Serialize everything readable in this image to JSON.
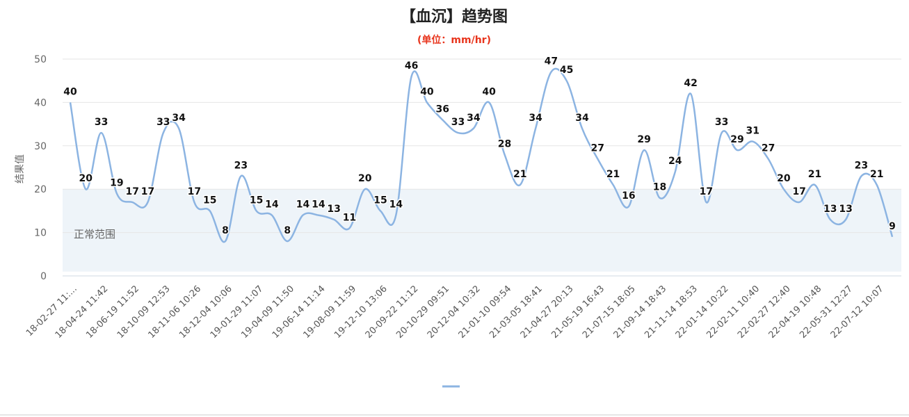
{
  "chart_data": {
    "type": "line",
    "title": "【血沉】趋势图",
    "subtitle": "(单位：mm/hr)",
    "ylabel": "结果值",
    "xlabel": "",
    "ylim": [
      0,
      50
    ],
    "yticks": [
      0,
      10,
      20,
      30,
      40,
      50
    ],
    "grid": true,
    "normal_range": {
      "label": "正常范围",
      "min": 1,
      "max": 20
    },
    "line_color": "#8cb4e2",
    "band_color": "#eef4f9",
    "subtitle_color": "#e8341c",
    "legend": {
      "placement": "bottom-center",
      "label": ""
    },
    "x_tick_labels": [
      "18-02-27 11:...",
      "18-04-24 11:42",
      "18-06-19 11:52",
      "18-10-09 12:53",
      "18-11-06 10:26",
      "18-12-04 10:06",
      "19-01-29 11:07",
      "19-04-09 11:50",
      "19-06-14 11:14",
      "19-08-09 11:59",
      "19-12-10 13:06",
      "20-09-22 11:12",
      "20-10-29 09:51",
      "20-12-04 10:32",
      "21-01-10 09:54",
      "21-03-05 18:41",
      "21-04-27 20:13",
      "21-05-19 16:43",
      "21-07-15 18:05",
      "21-09-14 18:43",
      "21-11-14 18:53",
      "22-01-14 10:22",
      "22-02-11 10:40",
      "22-02-27 12:40",
      "22-04-19 10:48",
      "22-05-31 12:27",
      "22-07-12 10:07"
    ],
    "series": [
      {
        "name": "",
        "values": [
          40,
          20,
          33,
          19,
          17,
          17,
          33,
          34,
          17,
          15,
          8,
          23,
          15,
          14,
          8,
          14,
          14,
          13,
          11,
          20,
          15,
          14,
          46,
          40,
          36,
          33,
          34,
          40,
          28,
          21,
          34,
          47,
          45,
          34,
          27,
          21,
          16,
          29,
          18,
          24,
          42,
          17,
          33,
          29,
          31,
          27,
          20,
          17,
          21,
          13,
          13,
          23,
          21,
          9
        ]
      }
    ]
  }
}
